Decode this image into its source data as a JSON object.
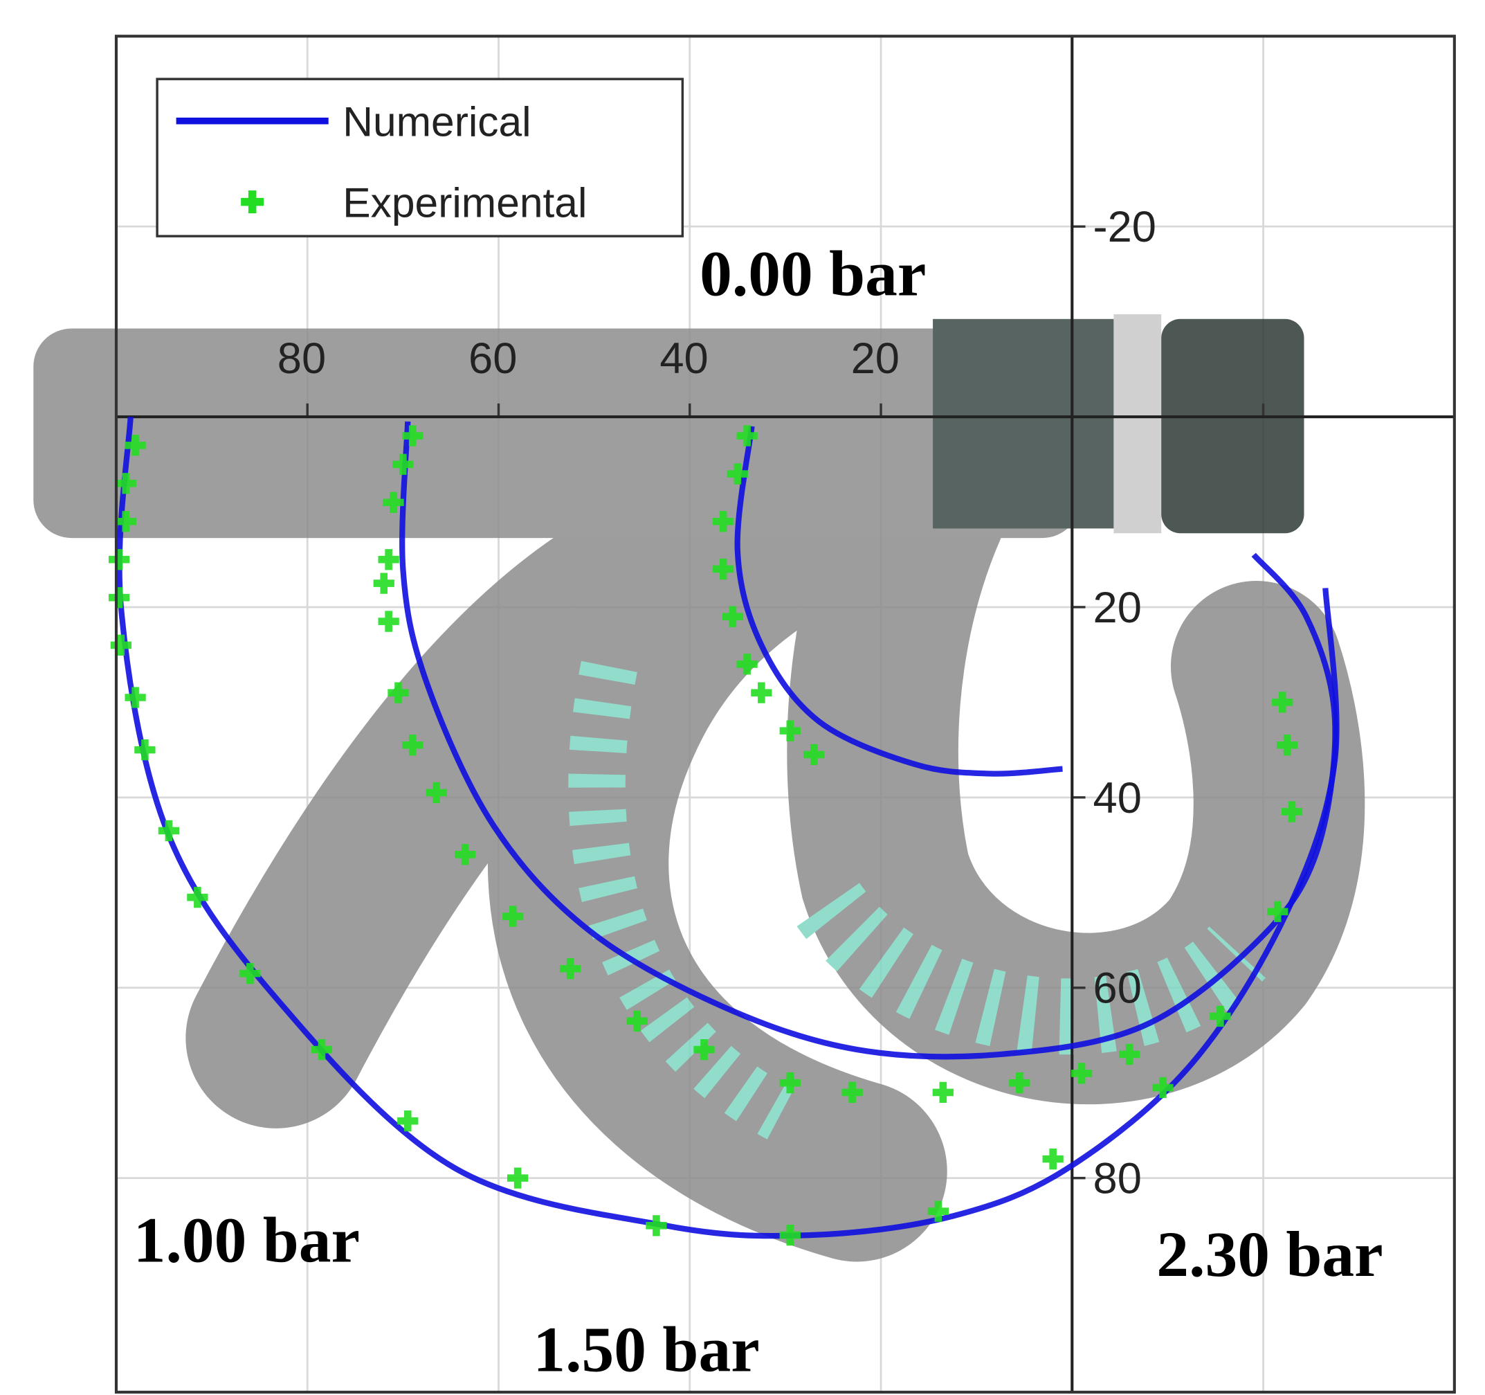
{
  "chart_data": {
    "type": "line",
    "xlim": [
      100,
      -40
    ],
    "ylim": [
      -40,
      102.5
    ],
    "xticks": [
      80,
      60,
      40,
      20,
      {
        "value": -20,
        "label": null
      }
    ],
    "yticks": [
      -20,
      20,
      40,
      60,
      80
    ],
    "grid": true,
    "legend": "upper left",
    "series": [
      {
        "name": "Numerical",
        "color": "#1010e0",
        "type": "line",
        "x": [
          98.5,
          99.5,
          94.5,
          82.5,
          64.5,
          42.5,
          27.5,
          12.5,
          0.5,
          -12.5,
          -22.5,
          -27.5,
          -26.5,
          null,
          69.5,
          70,
          67.5,
          60.5,
          50.5,
          36.5,
          22.5,
          7.5,
          -7.5,
          -19.5,
          -25.5,
          -27.5,
          -24.5,
          -19,
          null,
          33.5,
          35,
          32.5,
          26.5,
          16.5,
          8.5,
          1
        ],
        "y": [
          0,
          20,
          44,
          62,
          79,
          85,
          86,
          84,
          79,
          68,
          52,
          36,
          18,
          null,
          0.5,
          16,
          28,
          43,
          54,
          62,
          66.5,
          67,
          64,
          55,
          46,
          32,
          21,
          14.5,
          null,
          1,
          14,
          24,
          32,
          36.5,
          37.5,
          37
        ]
      },
      {
        "name": "Experimental",
        "color": "#22dd22",
        "type": "scatter",
        "x": [
          98,
          99,
          99,
          99.7,
          99.7,
          99.5,
          98,
          97,
          94.5,
          91.5,
          86,
          78.5,
          69.5,
          58,
          43.5,
          29.5,
          14,
          2,
          -9.5,
          -15.5,
          -21.5,
          -23,
          -22.5,
          -22,
          69,
          70,
          71,
          71.5,
          72,
          71.5,
          70.5,
          69,
          66.5,
          63.5,
          58.5,
          52.5,
          45.5,
          38.5,
          29.5,
          23,
          13.5,
          5.5,
          -1,
          -6,
          34,
          35,
          36.5,
          36.5,
          35.5,
          34,
          32.5,
          29.5,
          27
        ],
        "y": [
          3,
          7,
          11,
          15,
          19,
          24,
          29.5,
          35,
          43.5,
          50.5,
          58.5,
          66.5,
          74,
          80,
          85,
          86,
          83.5,
          78,
          70.5,
          63,
          52,
          41.5,
          34.5,
          30,
          2,
          5,
          9,
          15,
          17.5,
          21.5,
          29,
          34.5,
          39.5,
          46,
          52.5,
          58,
          63.5,
          66.5,
          70,
          71,
          71,
          70,
          69,
          67,
          2,
          6,
          11,
          16,
          21,
          26,
          29,
          33,
          35.5
        ]
      }
    ],
    "annotations": [
      "0.00 bar",
      "1.00 bar",
      "1.50 bar",
      "2.30 bar"
    ]
  }
}
